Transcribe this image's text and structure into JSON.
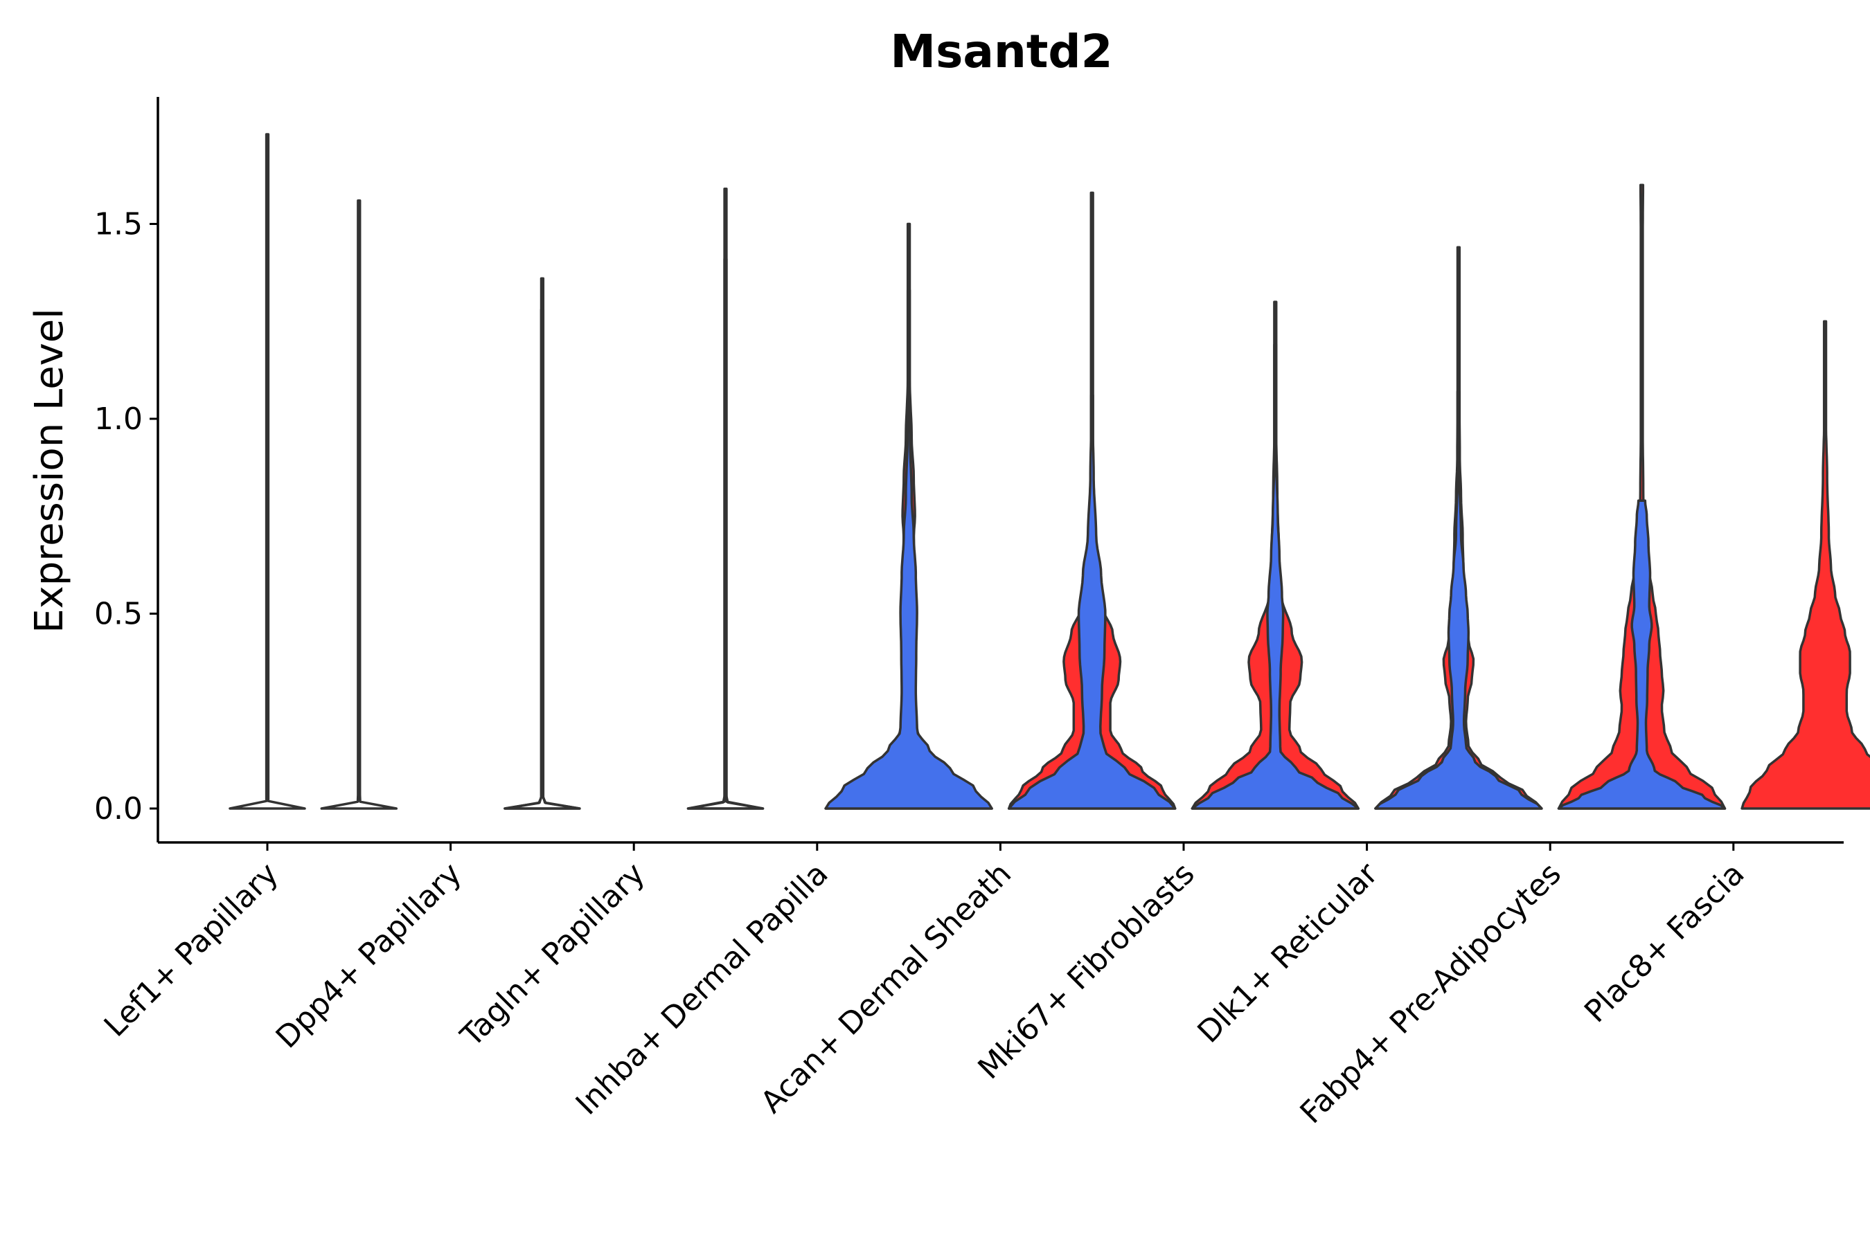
{
  "chart_data": {
    "type": "violin",
    "title": "Msantd2",
    "xlabel": "",
    "ylabel": "Expression Level",
    "ylim": [
      -0.09,
      1.82
    ],
    "yticks": [
      0.0,
      0.5,
      1.0,
      1.5
    ],
    "ytick_labels": [
      "0.0",
      "0.5",
      "1.0",
      "1.5"
    ],
    "grid": false,
    "colors": {
      "group1": "#4471EC",
      "group2": "#FF2F2F",
      "outline": "#333333"
    },
    "categories": [
      "Lef1+ Papillary",
      "Dpp4+ Papillary",
      "Tagln+ Papillary",
      "Inhba+ Dermal Papilla",
      "Acan+ Dermal Sheath",
      "Mki67+ Fibroblasts",
      "Dlk1+ Reticular",
      "Fabp4+ Pre-Adipocytes",
      "Plac8+ Fascia"
    ],
    "violins": [
      {
        "category": "Lef1+ Papillary",
        "offset": 0,
        "color": "none",
        "max": 1.73,
        "profile": [
          [
            0,
            0.45
          ],
          [
            0.006,
            0.1
          ],
          [
            0.02,
            0.006
          ],
          [
            0.2,
            0.004
          ],
          [
            1.73,
            0.003
          ]
        ]
      },
      {
        "category": "Dpp4+ Papillary",
        "offset": -0.5,
        "color": "none",
        "max": 1.56,
        "profile": [
          [
            0,
            0.45
          ],
          [
            0.006,
            0.1
          ],
          [
            0.02,
            0.006
          ],
          [
            0.2,
            0.004
          ],
          [
            1.56,
            0.003
          ]
        ]
      },
      {
        "category": "Dpp4+ Papillary",
        "offset": 0.5,
        "color": "none",
        "max": 1.28,
        "profile": [
          [
            0,
            0.45
          ],
          [
            0.006,
            0.1
          ],
          [
            0.02,
            0.006
          ],
          [
            0.2,
            0.004
          ],
          [
            1.28,
            0.003
          ]
        ]
      },
      {
        "category": "Tagln+ Papillary",
        "offset": -0.5,
        "color": "none",
        "max": 1.36,
        "profile": [
          [
            0,
            0.45
          ],
          [
            0.006,
            0.1
          ],
          [
            0.02,
            0.006
          ],
          [
            0.2,
            0.004
          ],
          [
            1.36,
            0.003
          ]
        ]
      },
      {
        "category": "Tagln+ Papillary",
        "offset": 0.5,
        "color": "none",
        "max": 1.41,
        "profile": [
          [
            0,
            0.45
          ],
          [
            0.006,
            0.1
          ],
          [
            0.02,
            0.006
          ],
          [
            0.2,
            0.004
          ],
          [
            1.41,
            0.003
          ]
        ]
      },
      {
        "category": "Inhba+ Dermal Papilla",
        "offset": -0.5,
        "color": "none",
        "max": 1.59,
        "profile": [
          [
            0,
            0.45
          ],
          [
            0.006,
            0.1
          ],
          [
            0.02,
            0.006
          ],
          [
            0.2,
            0.004
          ],
          [
            1.59,
            0.003
          ]
        ]
      },
      {
        "category": "Inhba+ Dermal Papilla",
        "offset": 0.5,
        "color": "red",
        "max": 1.5,
        "profile": [
          [
            0,
            1.0
          ],
          [
            0.05,
            0.75
          ],
          [
            0.1,
            0.45
          ],
          [
            0.15,
            0.22
          ],
          [
            0.2,
            0.1
          ],
          [
            0.3,
            0.065
          ],
          [
            0.4,
            0.058
          ],
          [
            0.5,
            0.065
          ],
          [
            0.6,
            0.058
          ],
          [
            0.7,
            0.062
          ],
          [
            0.75,
            0.075
          ],
          [
            0.85,
            0.06
          ],
          [
            0.95,
            0.035
          ],
          [
            1.1,
            0.012
          ],
          [
            1.25,
            0.006
          ],
          [
            1.5,
            0.005
          ]
        ]
      },
      {
        "category": "Acan+ Dermal Sheath",
        "offset": -0.5,
        "color": "blue",
        "max": 1.33,
        "profile": [
          [
            0,
            1.0
          ],
          [
            0.05,
            0.8
          ],
          [
            0.1,
            0.5
          ],
          [
            0.15,
            0.25
          ],
          [
            0.2,
            0.1
          ],
          [
            0.3,
            0.085
          ],
          [
            0.4,
            0.09
          ],
          [
            0.5,
            0.1
          ],
          [
            0.6,
            0.085
          ],
          [
            0.7,
            0.06
          ],
          [
            0.8,
            0.035
          ],
          [
            0.95,
            0.015
          ],
          [
            1.1,
            0.008
          ],
          [
            1.33,
            0.005
          ]
        ]
      },
      {
        "category": "Acan+ Dermal Sheath",
        "offset": 0.5,
        "color": "red",
        "max": 1.06,
        "profile": [
          [
            0,
            1.0
          ],
          [
            0.05,
            0.85
          ],
          [
            0.1,
            0.6
          ],
          [
            0.15,
            0.35
          ],
          [
            0.2,
            0.22
          ],
          [
            0.27,
            0.22
          ],
          [
            0.33,
            0.32
          ],
          [
            0.38,
            0.34
          ],
          [
            0.45,
            0.25
          ],
          [
            0.52,
            0.12
          ],
          [
            0.6,
            0.06
          ],
          [
            0.75,
            0.03
          ],
          [
            0.9,
            0.012
          ],
          [
            1.06,
            0.005
          ]
        ]
      },
      {
        "category": "Mki67+ Fibroblasts",
        "offset": -0.5,
        "color": "blue",
        "max": 1.58,
        "profile": [
          [
            0,
            1.0
          ],
          [
            0.05,
            0.75
          ],
          [
            0.1,
            0.4
          ],
          [
            0.15,
            0.15
          ],
          [
            0.2,
            0.1
          ],
          [
            0.3,
            0.12
          ],
          [
            0.4,
            0.15
          ],
          [
            0.5,
            0.16
          ],
          [
            0.6,
            0.11
          ],
          [
            0.7,
            0.05
          ],
          [
            0.85,
            0.02
          ],
          [
            1.0,
            0.008
          ],
          [
            1.58,
            0.005
          ]
        ]
      },
      {
        "category": "Mki67+ Fibroblasts",
        "offset": 0.5,
        "color": "red",
        "max": 1.3,
        "profile": [
          [
            0,
            1.0
          ],
          [
            0.05,
            0.8
          ],
          [
            0.1,
            0.55
          ],
          [
            0.15,
            0.3
          ],
          [
            0.2,
            0.17
          ],
          [
            0.27,
            0.18
          ],
          [
            0.33,
            0.3
          ],
          [
            0.38,
            0.32
          ],
          [
            0.45,
            0.2
          ],
          [
            0.55,
            0.07
          ],
          [
            0.65,
            0.045
          ],
          [
            0.8,
            0.025
          ],
          [
            1.0,
            0.008
          ],
          [
            1.3,
            0.005
          ]
        ]
      },
      {
        "category": "Dlk1+ Reticular",
        "offset": -0.5,
        "color": "blue",
        "max": 1.19,
        "profile": [
          [
            0,
            1.0
          ],
          [
            0.03,
            0.8
          ],
          [
            0.07,
            0.5
          ],
          [
            0.1,
            0.25
          ],
          [
            0.15,
            0.06
          ],
          [
            0.25,
            0.05
          ],
          [
            0.35,
            0.065
          ],
          [
            0.45,
            0.09
          ],
          [
            0.5,
            0.095
          ],
          [
            0.55,
            0.08
          ],
          [
            0.65,
            0.05
          ],
          [
            0.75,
            0.03
          ],
          [
            0.9,
            0.01
          ],
          [
            1.19,
            0.005
          ]
        ]
      },
      {
        "category": "Dlk1+ Reticular",
        "offset": 0.5,
        "color": "red",
        "max": 1.44,
        "profile": [
          [
            0,
            1.0
          ],
          [
            0.04,
            0.8
          ],
          [
            0.08,
            0.5
          ],
          [
            0.12,
            0.25
          ],
          [
            0.16,
            0.12
          ],
          [
            0.22,
            0.09
          ],
          [
            0.28,
            0.11
          ],
          [
            0.33,
            0.16
          ],
          [
            0.38,
            0.18
          ],
          [
            0.43,
            0.12
          ],
          [
            0.5,
            0.07
          ],
          [
            0.6,
            0.06
          ],
          [
            0.7,
            0.05
          ],
          [
            0.8,
            0.03
          ],
          [
            0.9,
            0.015
          ],
          [
            1.1,
            0.008
          ],
          [
            1.44,
            0.005
          ]
        ]
      },
      {
        "category": "Fabp4+ Pre-Adipocytes",
        "offset": -0.5,
        "color": "blue",
        "max": 1.07,
        "profile": [
          [
            0,
            1.0
          ],
          [
            0.04,
            0.75
          ],
          [
            0.08,
            0.45
          ],
          [
            0.12,
            0.2
          ],
          [
            0.16,
            0.09
          ],
          [
            0.22,
            0.065
          ],
          [
            0.3,
            0.08
          ],
          [
            0.38,
            0.11
          ],
          [
            0.45,
            0.12
          ],
          [
            0.5,
            0.11
          ],
          [
            0.55,
            0.09
          ],
          [
            0.62,
            0.06
          ],
          [
            0.7,
            0.03
          ],
          [
            0.85,
            0.012
          ],
          [
            1.07,
            0.005
          ]
        ]
      },
      {
        "category": "Fabp4+ Pre-Adipocytes",
        "offset": 0.5,
        "color": "red",
        "max": 1.6,
        "profile": [
          [
            0,
            1.0
          ],
          [
            0.05,
            0.85
          ],
          [
            0.1,
            0.55
          ],
          [
            0.15,
            0.35
          ],
          [
            0.2,
            0.27
          ],
          [
            0.26,
            0.24
          ],
          [
            0.3,
            0.26
          ],
          [
            0.35,
            0.24
          ],
          [
            0.4,
            0.22
          ],
          [
            0.45,
            0.2
          ],
          [
            0.5,
            0.17
          ],
          [
            0.55,
            0.13
          ],
          [
            0.62,
            0.08
          ],
          [
            0.7,
            0.04
          ],
          [
            0.8,
            0.018
          ],
          [
            1.0,
            0.01
          ],
          [
            1.3,
            0.01
          ],
          [
            1.5,
            0.012
          ],
          [
            1.6,
            0.015
          ]
        ]
      },
      {
        "category": "Plac8+ Fascia",
        "offset": -0.5,
        "color": "blue",
        "max": 0.79,
        "profile": [
          [
            0,
            1.0
          ],
          [
            0.03,
            0.75
          ],
          [
            0.06,
            0.45
          ],
          [
            0.1,
            0.15
          ],
          [
            0.15,
            0.06
          ],
          [
            0.22,
            0.05
          ],
          [
            0.28,
            0.065
          ],
          [
            0.35,
            0.07
          ],
          [
            0.42,
            0.09
          ],
          [
            0.47,
            0.12
          ],
          [
            0.52,
            0.09
          ],
          [
            0.6,
            0.1
          ],
          [
            0.68,
            0.08
          ],
          [
            0.75,
            0.06
          ],
          [
            0.79,
            0.04
          ]
        ]
      },
      {
        "category": "Plac8+ Fascia",
        "offset": 0.5,
        "color": "red",
        "max": 1.25,
        "profile": [
          [
            0,
            1.0
          ],
          [
            0.05,
            0.9
          ],
          [
            0.1,
            0.7
          ],
          [
            0.15,
            0.48
          ],
          [
            0.2,
            0.32
          ],
          [
            0.25,
            0.26
          ],
          [
            0.3,
            0.26
          ],
          [
            0.35,
            0.3
          ],
          [
            0.4,
            0.3
          ],
          [
            0.45,
            0.24
          ],
          [
            0.5,
            0.18
          ],
          [
            0.55,
            0.12
          ],
          [
            0.62,
            0.07
          ],
          [
            0.7,
            0.045
          ],
          [
            0.85,
            0.025
          ],
          [
            1.0,
            0.01
          ],
          [
            1.25,
            0.006
          ]
        ]
      }
    ]
  }
}
